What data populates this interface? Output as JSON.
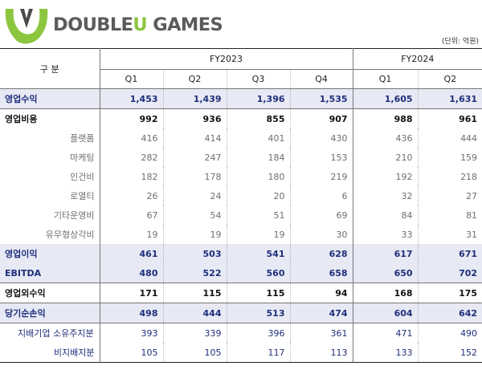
{
  "brand": {
    "name_part1": "DOUBLE",
    "name_part2": "U",
    "name_part3": " GAMES",
    "colors": {
      "green": "#8cc63f",
      "gray": "#5b5b5b",
      "highlight_bg": "#e7e9f4",
      "highlight_text": "#1f2e7a"
    }
  },
  "unit_note": "(단위: 억원)",
  "table": {
    "header": {
      "gubun": "구 분",
      "fy2023": "FY2023",
      "fy2024": "FY2024",
      "quarters": [
        "Q1",
        "Q2",
        "Q3",
        "Q4",
        "Q1",
        "Q2"
      ]
    },
    "rows": [
      {
        "label": "영업수익",
        "values": [
          "1,453",
          "1,439",
          "1,396",
          "1,535",
          "1,605",
          "1,631"
        ]
      },
      {
        "label": "영업비용",
        "values": [
          "992",
          "936",
          "855",
          "907",
          "988",
          "961"
        ]
      },
      {
        "label": "플랫폼",
        "values": [
          "416",
          "414",
          "401",
          "430",
          "436",
          "444"
        ]
      },
      {
        "label": "마케팅",
        "values": [
          "282",
          "247",
          "184",
          "153",
          "210",
          "159"
        ]
      },
      {
        "label": "인건비",
        "values": [
          "182",
          "178",
          "180",
          "219",
          "192",
          "218"
        ]
      },
      {
        "label": "로열티",
        "values": [
          "26",
          "24",
          "20",
          "6",
          "32",
          "27"
        ]
      },
      {
        "label": "기타운영비",
        "values": [
          "67",
          "54",
          "51",
          "69",
          "84",
          "81"
        ]
      },
      {
        "label": "유무형상각비",
        "values": [
          "19",
          "19",
          "19",
          "30",
          "33",
          "31"
        ]
      },
      {
        "label": "영업이익",
        "values": [
          "461",
          "503",
          "541",
          "628",
          "617",
          "671"
        ]
      },
      {
        "label": "EBITDA",
        "values": [
          "480",
          "522",
          "560",
          "658",
          "650",
          "702"
        ]
      },
      {
        "label": "영업외수익",
        "values": [
          "171",
          "115",
          "115",
          "94",
          "168",
          "175"
        ]
      },
      {
        "label": "당기순손익",
        "values": [
          "498",
          "444",
          "513",
          "474",
          "604",
          "642"
        ]
      },
      {
        "label": "지배기업 소유주지분",
        "values": [
          "393",
          "339",
          "396",
          "361",
          "471",
          "490"
        ]
      },
      {
        "label": "비지배지분",
        "values": [
          "105",
          "105",
          "117",
          "113",
          "133",
          "152"
        ]
      }
    ]
  }
}
